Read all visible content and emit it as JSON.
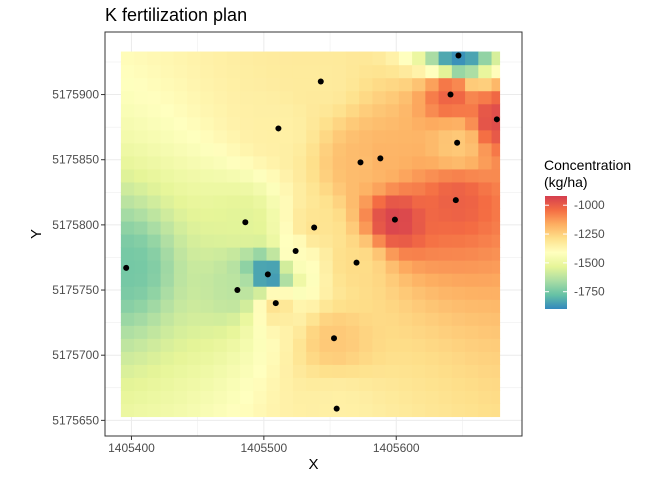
{
  "chart_data": {
    "type": "heatmap",
    "title": "K fertilization plan",
    "xlabel": "X",
    "ylabel": "Y",
    "xlim": [
      1405380,
      1405695
    ],
    "ylim": [
      5175638,
      5175948
    ],
    "x_ticks": [
      1405400,
      1405500,
      1405600
    ],
    "y_ticks": [
      5175650,
      5175700,
      5175750,
      5175800,
      5175850,
      5175900
    ],
    "x_tick_labels": [
      "1405400",
      "1405500",
      "1405600"
    ],
    "y_tick_labels": [
      "5175650",
      "5175700",
      "5175750",
      "5175800",
      "5175850",
      "5175900"
    ],
    "grid_extent": {
      "x": [
        1405392,
        1405678
      ],
      "y": [
        5175653,
        5175933
      ],
      "cell": 10
    },
    "grid": "on",
    "legend": {
      "title_line1": "Concentration",
      "title_line2": "(kg/ha)",
      "placement": "right",
      "min": -1900,
      "max": -920,
      "ticks": [
        -1000,
        -1250,
        -1500,
        -1750
      ],
      "tick_labels": [
        "-1000",
        "-1250",
        "-1500",
        "-1750"
      ],
      "colors": [
        "#3288bd",
        "#66c2a5",
        "#abdda4",
        "#e6f598",
        "#ffffbf",
        "#fee08b",
        "#fdae61",
        "#f46d43",
        "#d53e4f"
      ]
    },
    "points": [
      {
        "x": 1405647,
        "y": 5175930,
        "value": -1880
      },
      {
        "x": 1405543,
        "y": 5175910,
        "value": -1330
      },
      {
        "x": 1405641,
        "y": 5175900,
        "value": -1020
      },
      {
        "x": 1405676,
        "y": 5175881,
        "value": -960
      },
      {
        "x": 1405511,
        "y": 5175874,
        "value": -1350
      },
      {
        "x": 1405646,
        "y": 5175863,
        "value": -1230
      },
      {
        "x": 1405588,
        "y": 5175851,
        "value": -1180
      },
      {
        "x": 1405573,
        "y": 5175848,
        "value": -1200
      },
      {
        "x": 1405645,
        "y": 5175819,
        "value": -1010
      },
      {
        "x": 1405599,
        "y": 5175804,
        "value": -940
      },
      {
        "x": 1405486,
        "y": 5175802,
        "value": -1540
      },
      {
        "x": 1405538,
        "y": 5175798,
        "value": -1300
      },
      {
        "x": 1405524,
        "y": 5175780,
        "value": -1400
      },
      {
        "x": 1405570,
        "y": 5175771,
        "value": -1280
      },
      {
        "x": 1405396,
        "y": 5175767,
        "value": -1750
      },
      {
        "x": 1405503,
        "y": 5175762,
        "value": -1880
      },
      {
        "x": 1405480,
        "y": 5175750,
        "value": -1620
      },
      {
        "x": 1405509,
        "y": 5175740,
        "value": -1300
      },
      {
        "x": 1405553,
        "y": 5175713,
        "value": -1230
      },
      {
        "x": 1405555,
        "y": 5175659,
        "value": -1350
      }
    ]
  }
}
